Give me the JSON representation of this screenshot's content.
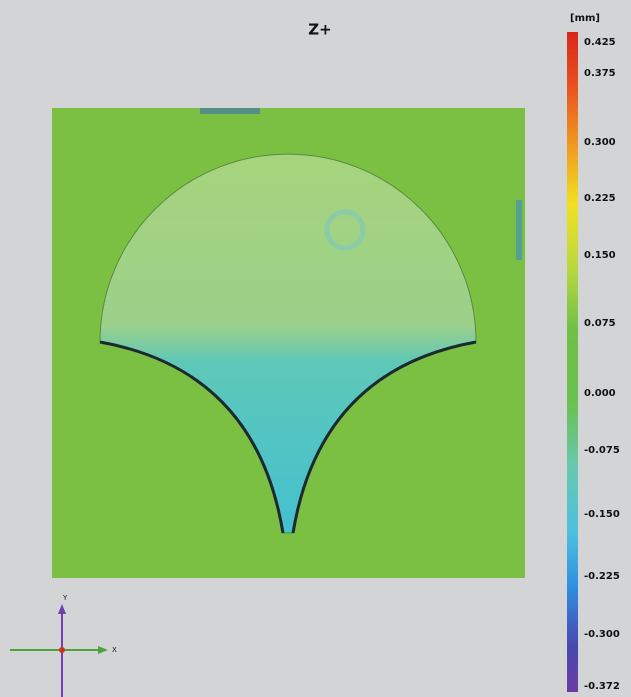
{
  "title": "Z+",
  "colorbar": {
    "unit": "[mm]",
    "labels": [
      "0.425",
      "0.375",
      "0.300",
      "0.225",
      "0.150",
      "0.075",
      "0.000",
      "-0.075",
      "-0.150",
      "-0.225",
      "-0.300",
      "-0.372"
    ]
  },
  "axes": {
    "y": "Y",
    "x": "X"
  }
}
